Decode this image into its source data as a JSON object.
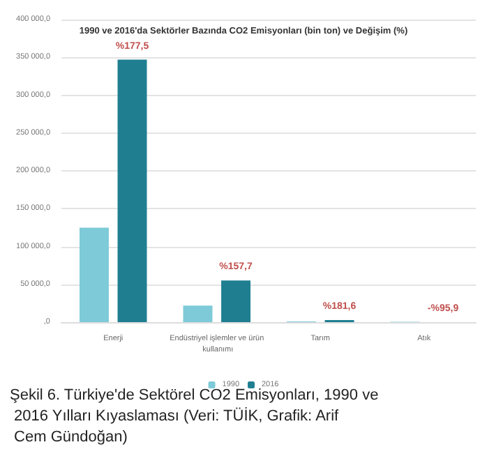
{
  "chart_data": {
    "type": "bar",
    "title": "1990 ve 2016'da Sektörler Bazında CO2 Emisyonları (bin ton) ve Değişim (%)",
    "categories": [
      "Enerji",
      "Endüstriyel işlemler ve ürün kullanımı",
      "Tarım",
      "Atık"
    ],
    "series": [
      {
        "name": "1990",
        "color": "#7ecad8",
        "values": [
          125000,
          22000,
          1000,
          500
        ]
      },
      {
        "name": "2016",
        "color": "#1f7f91",
        "values": [
          347000,
          55000,
          2800,
          20
        ]
      }
    ],
    "ylim": [
      0,
      400000
    ],
    "yticks": [
      {
        "value": 0,
        "label": ",0"
      },
      {
        "value": 50000,
        "label": "50 000,0"
      },
      {
        "value": 100000,
        "label": "100 000,0"
      },
      {
        "value": 150000,
        "label": "150 000,0"
      },
      {
        "value": 200000,
        "label": "200 000,0"
      },
      {
        "value": 250000,
        "label": "250 000,0"
      },
      {
        "value": 300000,
        "label": "300 000,0"
      },
      {
        "value": 350000,
        "label": "350 000,0"
      },
      {
        "value": 400000,
        "label": "400 000,0"
      }
    ],
    "annotations": [
      {
        "text": "%177,5",
        "x": "Enerji",
        "y": 347000
      },
      {
        "text": "%157,7",
        "x": "Endüstriyel işlemler ve ürün kullanımı",
        "y": 55000
      },
      {
        "text": "%181,6",
        "x": "Tarım",
        "y": 2800
      },
      {
        "text": "-%95,9",
        "x": "Atık",
        "y": 20
      },
      "Şekil 6. Türkiye'de Sektörel CO2 Emisyonları, 1990 ve 2016 Yılları Kıyaslaması (Veri: TÜİK, Grafik: Arif Cem Gündoğan)"
    ],
    "grid": "y",
    "legend": "bottom"
  }
}
